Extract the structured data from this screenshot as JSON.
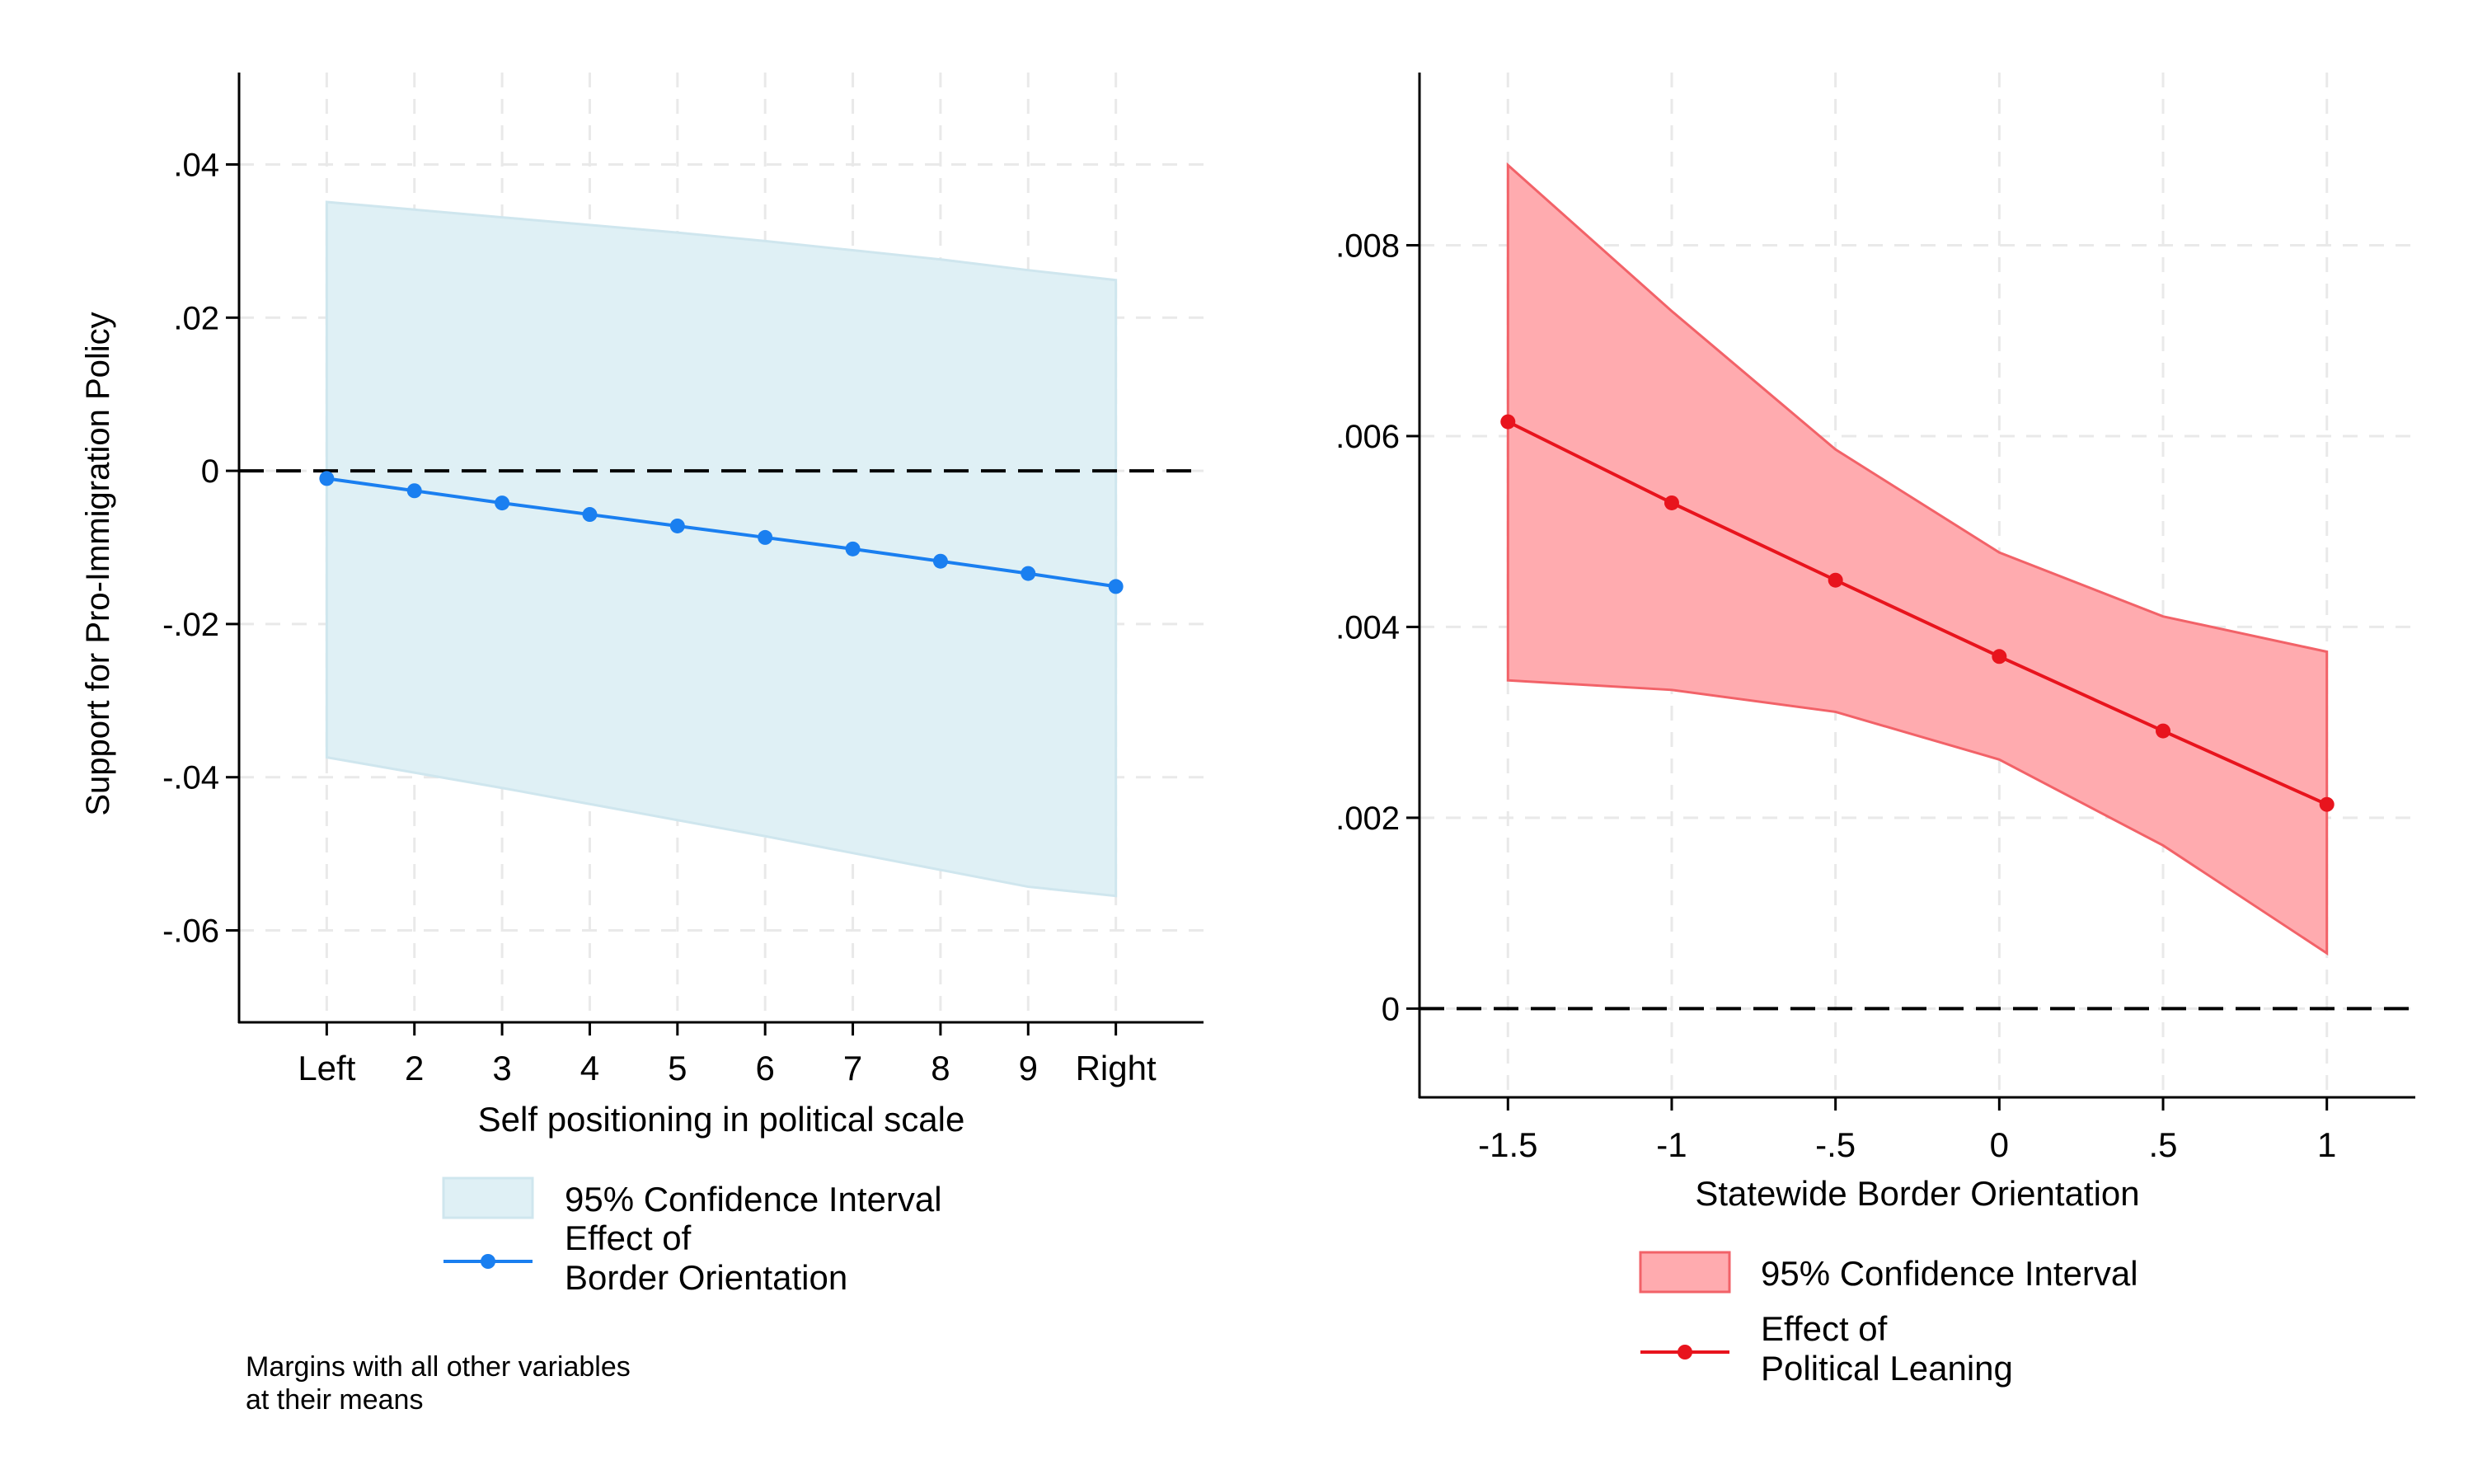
{
  "chart_data": [
    {
      "type": "line",
      "xlabel": "Self positioning in political scale",
      "ylabel": "Support for Pro-Immigration Policy",
      "categories": [
        "Left",
        "2",
        "3",
        "4",
        "5",
        "6",
        "7",
        "8",
        "9",
        "Right"
      ],
      "x": [
        1,
        2,
        3,
        4,
        5,
        6,
        7,
        8,
        9,
        10
      ],
      "xlim": [
        0,
        11
      ],
      "ylim": [
        -0.072,
        0.052
      ],
      "yticks": [
        0.04,
        0.02,
        0,
        -0.02,
        -0.04,
        -0.06
      ],
      "yticklabels": [
        ".04",
        ".02",
        "0",
        "-.02",
        "-.04",
        "-.06"
      ],
      "grid": true,
      "reference_line": 0,
      "series": [
        {
          "name": "Effect of\nBorder Orientation",
          "kind": "line",
          "color": "#1a7ff0",
          "values": [
            -0.001,
            -0.0026,
            -0.0042,
            -0.0057,
            -0.0072,
            -0.0087,
            -0.0102,
            -0.0118,
            -0.0134,
            -0.0151
          ]
        },
        {
          "name": "95% Confidence Interval",
          "kind": "band",
          "color": "#dff0f5",
          "lower": [
            -0.0374,
            -0.0394,
            -0.0414,
            -0.0435,
            -0.0456,
            -0.0477,
            -0.0499,
            -0.0521,
            -0.0543,
            -0.0555
          ],
          "upper": [
            0.0351,
            0.0341,
            0.0331,
            0.0321,
            0.0311,
            0.03,
            0.0288,
            0.0276,
            0.0262,
            0.0249
          ]
        }
      ],
      "legend": {
        "position": "bottom",
        "entries": [
          "95% Confidence Interval",
          "Effect of\nBorder Orientation"
        ]
      }
    },
    {
      "type": "line",
      "xlabel": "Statewide Border Orientation",
      "ylabel": "",
      "x": [
        -1.5,
        -1,
        -0.5,
        0,
        0.5,
        1
      ],
      "xticks": [
        -1.5,
        -1,
        -0.5,
        0,
        0.5,
        1
      ],
      "xticklabels": [
        "-1.5",
        "-1",
        "-.5",
        "0",
        ".5",
        "1"
      ],
      "xlim": [
        -1.77,
        1.27
      ],
      "ylim": [
        -0.00093,
        0.00981
      ],
      "yticks": [
        0.008,
        0.006,
        0.004,
        0.002,
        0
      ],
      "yticklabels": [
        ".008",
        ".006",
        ".004",
        ".002",
        "0"
      ],
      "grid": true,
      "reference_line": 0,
      "series": [
        {
          "name": "Effect of\nPolitical Leaning",
          "kind": "line",
          "color": "#e8141d",
          "values": [
            0.00615,
            0.0053,
            0.00449,
            0.00369,
            0.00291,
            0.00214
          ]
        },
        {
          "name": "95% Confidence Interval",
          "kind": "band",
          "color": "#ffabaf",
          "edge": "#f26268",
          "lower": [
            0.00344,
            0.00334,
            0.00311,
            0.00261,
            0.00171,
            0.00058
          ],
          "upper": [
            0.00884,
            0.00731,
            0.00586,
            0.00478,
            0.00411,
            0.00374
          ]
        }
      ],
      "legend": {
        "position": "bottom",
        "entries": [
          "95% Confidence Interval",
          "Effect of\nPolitical Leaning"
        ]
      }
    }
  ],
  "note": "Margins with all other variables\nat their means"
}
